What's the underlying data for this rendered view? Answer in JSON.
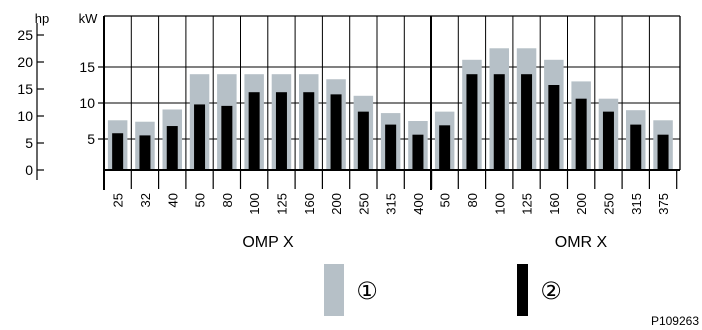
{
  "chart_data": {
    "type": "bar",
    "left_axis": {
      "unit": "hp",
      "ticks": [
        0,
        5,
        10,
        15,
        20,
        25
      ]
    },
    "right_axis": {
      "unit": "kW",
      "ticks": [
        5,
        10,
        15
      ]
    },
    "ylim_kw": [
      0,
      20
    ],
    "grid": true,
    "groups": [
      {
        "name": "OMP X",
        "categories": [
          "25",
          "32",
          "40",
          "50",
          "80",
          "100",
          "125",
          "160",
          "200",
          "250",
          "315",
          "400"
        ],
        "series": [
          {
            "name": "①",
            "color": "#b6c0c7",
            "values": [
              7.6,
              7.4,
              9.1,
              14.0,
              14.0,
              14.0,
              14.0,
              14.0,
              13.3,
              11.0,
              8.6,
              7.5
            ]
          },
          {
            "name": "②",
            "color": "#000000",
            "values": [
              5.8,
              5.5,
              6.8,
              9.8,
              9.6,
              11.5,
              11.5,
              11.5,
              11.2,
              8.8,
              7.0,
              5.6
            ]
          }
        ]
      },
      {
        "name": "OMR X",
        "categories": [
          "50",
          "80",
          "100",
          "125",
          "160",
          "200",
          "250",
          "315",
          "375"
        ],
        "series": [
          {
            "name": "①",
            "color": "#b6c0c7",
            "values": [
              8.8,
              16.0,
              17.6,
              17.6,
              16.0,
              13.0,
              10.6,
              9.0,
              7.6
            ]
          },
          {
            "name": "②",
            "color": "#000000",
            "values": [
              6.9,
              14.0,
              14.0,
              14.0,
              12.5,
              10.6,
              8.8,
              7.0,
              5.6
            ]
          }
        ]
      }
    ],
    "legend": {
      "position": "bottom",
      "items": [
        {
          "label": "①",
          "color": "#b6c0c7"
        },
        {
          "label": "②",
          "color": "#000000"
        }
      ]
    },
    "figure_code": "P109263"
  }
}
